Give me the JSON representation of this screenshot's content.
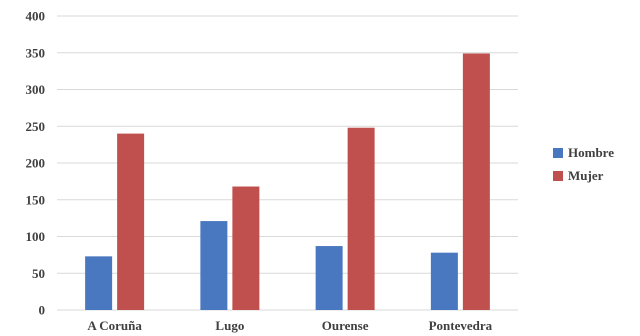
{
  "chart_data": {
    "type": "bar",
    "title": "",
    "xlabel": "",
    "ylabel": "",
    "categories": [
      "A Coruña",
      "Lugo",
      "Ourense",
      "Pontevedra"
    ],
    "series": [
      {
        "name": "Hombre",
        "values": [
          73,
          121,
          87,
          78
        ],
        "color": "#4a78c0"
      },
      {
        "name": "Mujer",
        "values": [
          240,
          168,
          248,
          349
        ],
        "color": "#c0504d"
      }
    ],
    "ylim": [
      0,
      400
    ],
    "yticks": [
      0,
      50,
      100,
      150,
      200,
      250,
      300,
      350,
      400
    ],
    "grid": true,
    "gridline_color": "#d9d9d9",
    "legend_position": "right"
  }
}
